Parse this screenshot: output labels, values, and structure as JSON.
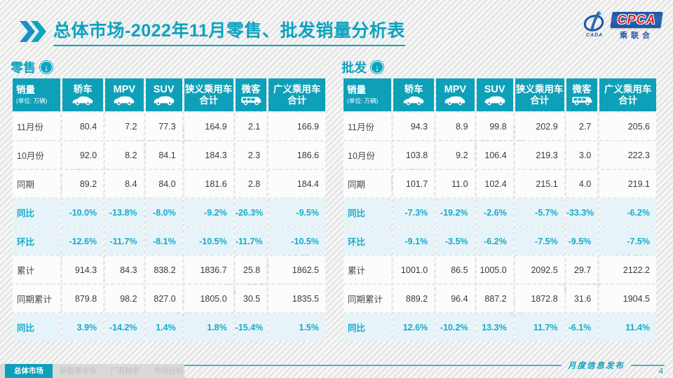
{
  "slide": {
    "title_prefix": "总体市场",
    "title_suffix": "-2022年11月零售、批发销量分析表",
    "footer_note": "月度信息发布",
    "page_number": "4",
    "watermark": "CPCA 乘联会"
  },
  "logo": {
    "acronym": "CPCA",
    "cn_name": "乘联合",
    "emblem_text": "CADA"
  },
  "colors": {
    "accent": "#0CA3BF",
    "header_bg": "#0FA0B9",
    "highlight_bg": "#E6F4F9",
    "highlight_text": "#19A9C7",
    "logo_blue": "#1D55A5",
    "logo_red": "#D4232A"
  },
  "columns": [
    {
      "key": "sales",
      "label": "销量",
      "sublabel": "(单位: 万辆)",
      "icon": null
    },
    {
      "key": "sedan",
      "label": "轿车",
      "icon": "sedan-icon"
    },
    {
      "key": "mpv",
      "label": "MPV",
      "icon": "mpv-icon",
      "latin": true
    },
    {
      "key": "suv",
      "label": "SUV",
      "icon": "suv-icon",
      "latin": true
    },
    {
      "key": "narrow-total",
      "label": "狭义乘用车",
      "label2": "合计",
      "icon": null
    },
    {
      "key": "van",
      "label": "微客",
      "icon": "van-icon"
    },
    {
      "key": "broad-total",
      "label": "广义乘用车",
      "label2": "合计",
      "icon": null
    }
  ],
  "retail": {
    "section_title": "零售",
    "arrow": "↓",
    "rows": [
      {
        "label": "11月份",
        "style": "normal",
        "values": [
          "80.4",
          "7.2",
          "77.3",
          "164.9",
          "2.1",
          "166.9"
        ]
      },
      {
        "label": "10月份",
        "style": "normal",
        "values": [
          "92.0",
          "8.2",
          "84.1",
          "184.3",
          "2.3",
          "186.6"
        ]
      },
      {
        "label": "同期",
        "style": "normal",
        "values": [
          "89.2",
          "8.4",
          "84.0",
          "181.6",
          "2.8",
          "184.4"
        ]
      },
      {
        "label": "同比",
        "style": "highlight",
        "values": [
          "-10.0%",
          "-13.8%",
          "-8.0%",
          "-9.2%",
          "-26.3%",
          "-9.5%"
        ]
      },
      {
        "label": "环比",
        "style": "highlight",
        "values": [
          "-12.6%",
          "-11.7%",
          "-8.1%",
          "-10.5%",
          "-11.7%",
          "-10.5%"
        ]
      },
      {
        "label": "累计",
        "style": "normal",
        "values": [
          "914.3",
          "84.3",
          "838.2",
          "1836.7",
          "25.8",
          "1862.5"
        ]
      },
      {
        "label": "同期累计",
        "style": "normal",
        "values": [
          "879.8",
          "98.2",
          "827.0",
          "1805.0",
          "30.5",
          "1835.5"
        ]
      },
      {
        "label": "同比",
        "style": "highlight",
        "values": [
          "3.9%",
          "-14.2%",
          "1.4%",
          "1.8%",
          "-15.4%",
          "1.5%"
        ]
      }
    ]
  },
  "wholesale": {
    "section_title": "批发",
    "arrow": "↓",
    "rows": [
      {
        "label": "11月份",
        "style": "normal",
        "values": [
          "94.3",
          "8.9",
          "99.8",
          "202.9",
          "2.7",
          "205.6"
        ]
      },
      {
        "label": "10月份",
        "style": "normal",
        "values": [
          "103.8",
          "9.2",
          "106.4",
          "219.3",
          "3.0",
          "222.3"
        ]
      },
      {
        "label": "同期",
        "style": "normal",
        "values": [
          "101.7",
          "11.0",
          "102.4",
          "215.1",
          "4.0",
          "219.1"
        ]
      },
      {
        "label": "同比",
        "style": "highlight",
        "values": [
          "-7.3%",
          "-19.2%",
          "-2.6%",
          "-5.7%",
          "-33.3%",
          "-6.2%"
        ]
      },
      {
        "label": "环比",
        "style": "highlight",
        "values": [
          "-9.1%",
          "-3.5%",
          "-6.2%",
          "-7.5%",
          "-9.5%",
          "-7.5%"
        ]
      },
      {
        "label": "累计",
        "style": "normal",
        "values": [
          "1001.0",
          "86.5",
          "1005.0",
          "2092.5",
          "29.7",
          "2122.2"
        ]
      },
      {
        "label": "同期累计",
        "style": "normal",
        "values": [
          "889.2",
          "96.4",
          "887.2",
          "1872.8",
          "31.6",
          "1904.5"
        ]
      },
      {
        "label": "同比",
        "style": "highlight",
        "values": [
          "12.6%",
          "-10.2%",
          "13.3%",
          "11.7%",
          "-6.1%",
          "11.4%"
        ]
      }
    ]
  },
  "nav": {
    "tabs": [
      {
        "label": "总体市场",
        "active": true
      },
      {
        "label": "新能源市场",
        "active": false
      },
      {
        "label": "厂商排名",
        "active": false
      },
      {
        "label": "市场分析",
        "active": false
      }
    ]
  }
}
